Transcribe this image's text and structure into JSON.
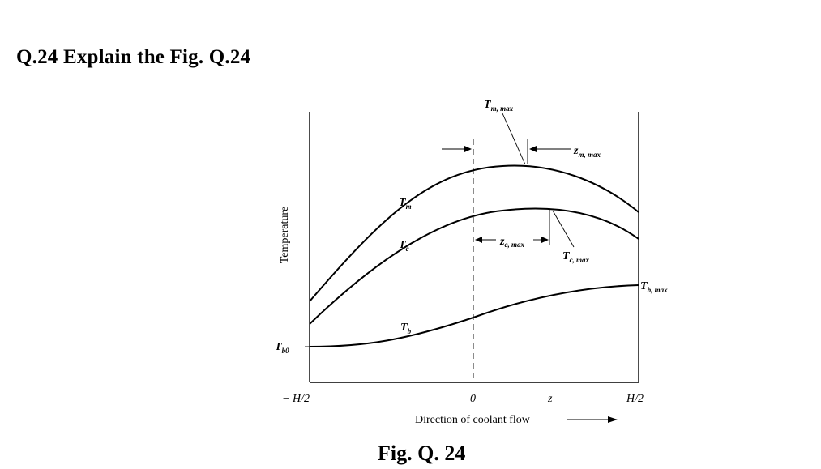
{
  "question": "Q.24 Explain the Fig. Q.24",
  "caption": "Fig. Q. 24",
  "figure": {
    "y_axis_label": "Temperature",
    "x_axis_label": "Direction of coolant flow",
    "x_ticks": [
      "− H/2",
      "0",
      "z",
      "H/2"
    ],
    "curve_labels": {
      "Tm": {
        "base": "T",
        "sub": "m"
      },
      "Tc": {
        "base": "T",
        "sub": "c"
      },
      "Tb": {
        "base": "T",
        "sub": "b"
      }
    },
    "annotations": {
      "Tm_max": {
        "base": "T",
        "sub": "m, max"
      },
      "zm_max": {
        "base": "z",
        "sub": "m, max"
      },
      "zc_max": {
        "base": "z",
        "sub": "c, max"
      },
      "Tc_max": {
        "base": "T",
        "sub": "c, max"
      },
      "Tb_max": {
        "base": "T",
        "sub": "b, max"
      },
      "Tb0": {
        "base": "T",
        "sub": "b0"
      }
    }
  }
}
